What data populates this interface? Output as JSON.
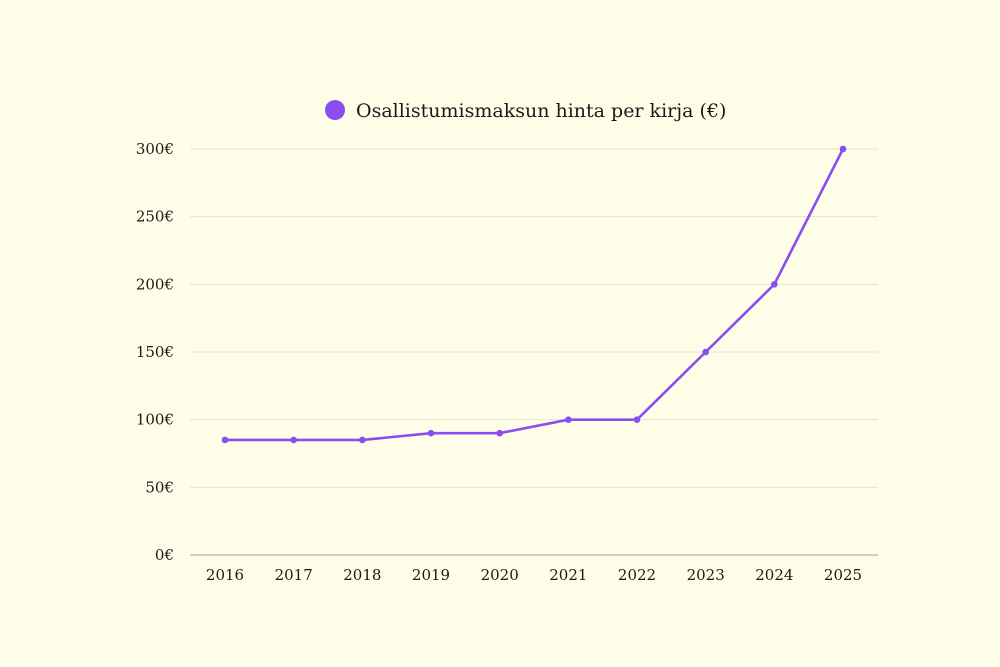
{
  "chart_data": {
    "type": "line",
    "title": "",
    "xlabel": "",
    "ylabel": "",
    "categories": [
      "2016",
      "2017",
      "2018",
      "2019",
      "2020",
      "2021",
      "2022",
      "2023",
      "2024",
      "2025"
    ],
    "series": [
      {
        "name": "Osallistumismaksun hinta per kirja (€)",
        "values": [
          85,
          85,
          85,
          90,
          90,
          100,
          100,
          150,
          200,
          300
        ],
        "color": "#8b4cf0"
      }
    ],
    "ylim": [
      0,
      300
    ],
    "yticks": [
      0,
      50,
      100,
      150,
      200,
      250,
      300
    ],
    "ytick_labels": [
      "0€",
      "50€",
      "100€",
      "150€",
      "200€",
      "250€",
      "300€"
    ],
    "grid": true,
    "legend": "top-center"
  },
  "colors": {
    "background": "#fefde8",
    "grid": "#e3e2cf",
    "axis": "#b8b7a4",
    "line": "#8b4cf0"
  }
}
